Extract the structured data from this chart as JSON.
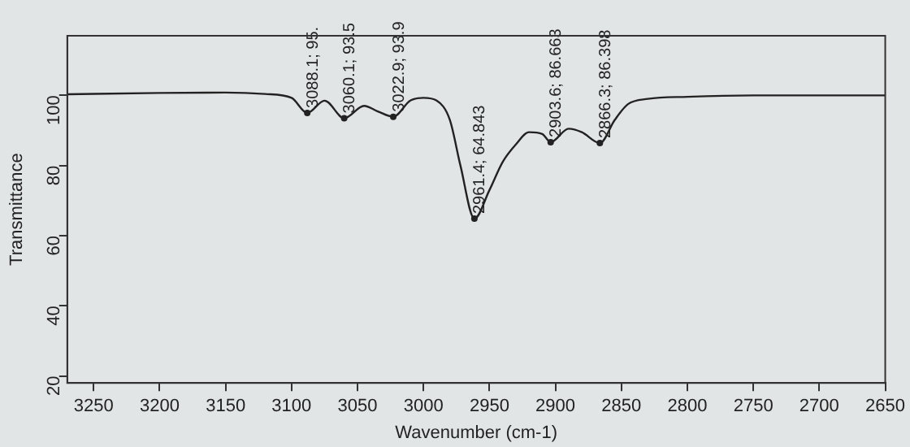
{
  "chart_data": {
    "type": "line",
    "xlabel": "Wavenumber (cm-1)",
    "ylabel": "Transmittance",
    "x": [
      3270,
      3200,
      3150,
      3120,
      3100,
      3088.1,
      3075,
      3060.1,
      3045,
      3035,
      3022.9,
      3010,
      3000,
      2990,
      2980,
      2972,
      2961.4,
      2950,
      2940,
      2930,
      2920,
      2910,
      2903.6,
      2890,
      2880,
      2866.3,
      2855,
      2845,
      2830,
      2800,
      2750,
      2700,
      2650
    ],
    "series": [
      {
        "color": "#222222",
        "values": [
          100.3,
          100.7,
          100.8,
          100.4,
          99.3,
          95,
          98.5,
          93.5,
          97,
          95.5,
          93.9,
          98.5,
          99.3,
          98.5,
          93,
          80,
          64.843,
          73,
          81,
          86,
          89.5,
          89,
          86.663,
          90.5,
          89.5,
          86.398,
          93,
          97.5,
          99,
          99.6,
          100,
          100,
          100
        ]
      }
    ],
    "xlim": [
      3270,
      2650
    ],
    "xticks": [
      3250,
      3200,
      3150,
      3100,
      3050,
      3000,
      2950,
      2900,
      2850,
      2800,
      2750,
      2700,
      2650
    ],
    "ylim": [
      18,
      117
    ],
    "yticks": [
      20,
      40,
      60,
      80,
      100
    ],
    "grid": false,
    "legend": false,
    "marker": "none",
    "line_style": "solid",
    "annotations": [
      {
        "text": "3088.1; 95.",
        "x": 3088.1,
        "y": 95
      },
      {
        "text": "3060.1; 93.5",
        "x": 3060.1,
        "y": 93.5
      },
      {
        "text": "3022.9; 93.9",
        "x": 3022.9,
        "y": 93.9
      },
      {
        "text": "2961.4; 64.843",
        "x": 2961.4,
        "y": 64.843
      },
      {
        "text": "2903.6; 86.663",
        "x": 2903.6,
        "y": 86.663
      },
      {
        "text": "2866.3; 86.398",
        "x": 2866.3,
        "y": 86.398
      }
    ]
  }
}
